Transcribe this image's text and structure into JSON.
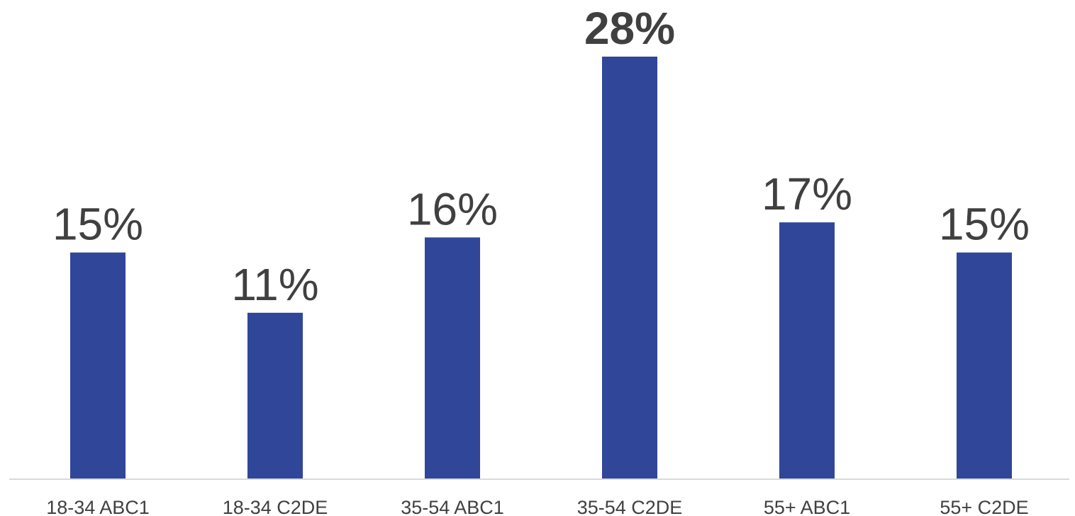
{
  "chart_data": {
    "type": "bar",
    "categories": [
      "18-34 ABC1",
      "18-34 C2DE",
      "35-54 ABC1",
      "35-54 C2DE",
      "55+ ABC1",
      "55+ C2DE"
    ],
    "values": [
      15,
      11,
      16,
      28,
      17,
      15
    ],
    "data_labels": [
      "15%",
      "11%",
      "16%",
      "28%",
      "17%",
      "15%"
    ],
    "highlight_index": 3,
    "ylim": [
      0,
      28
    ],
    "grid": false,
    "colors": {
      "bar": "#2f4699",
      "label_text": "#404040",
      "axis_line": "#d9d9d9"
    }
  }
}
